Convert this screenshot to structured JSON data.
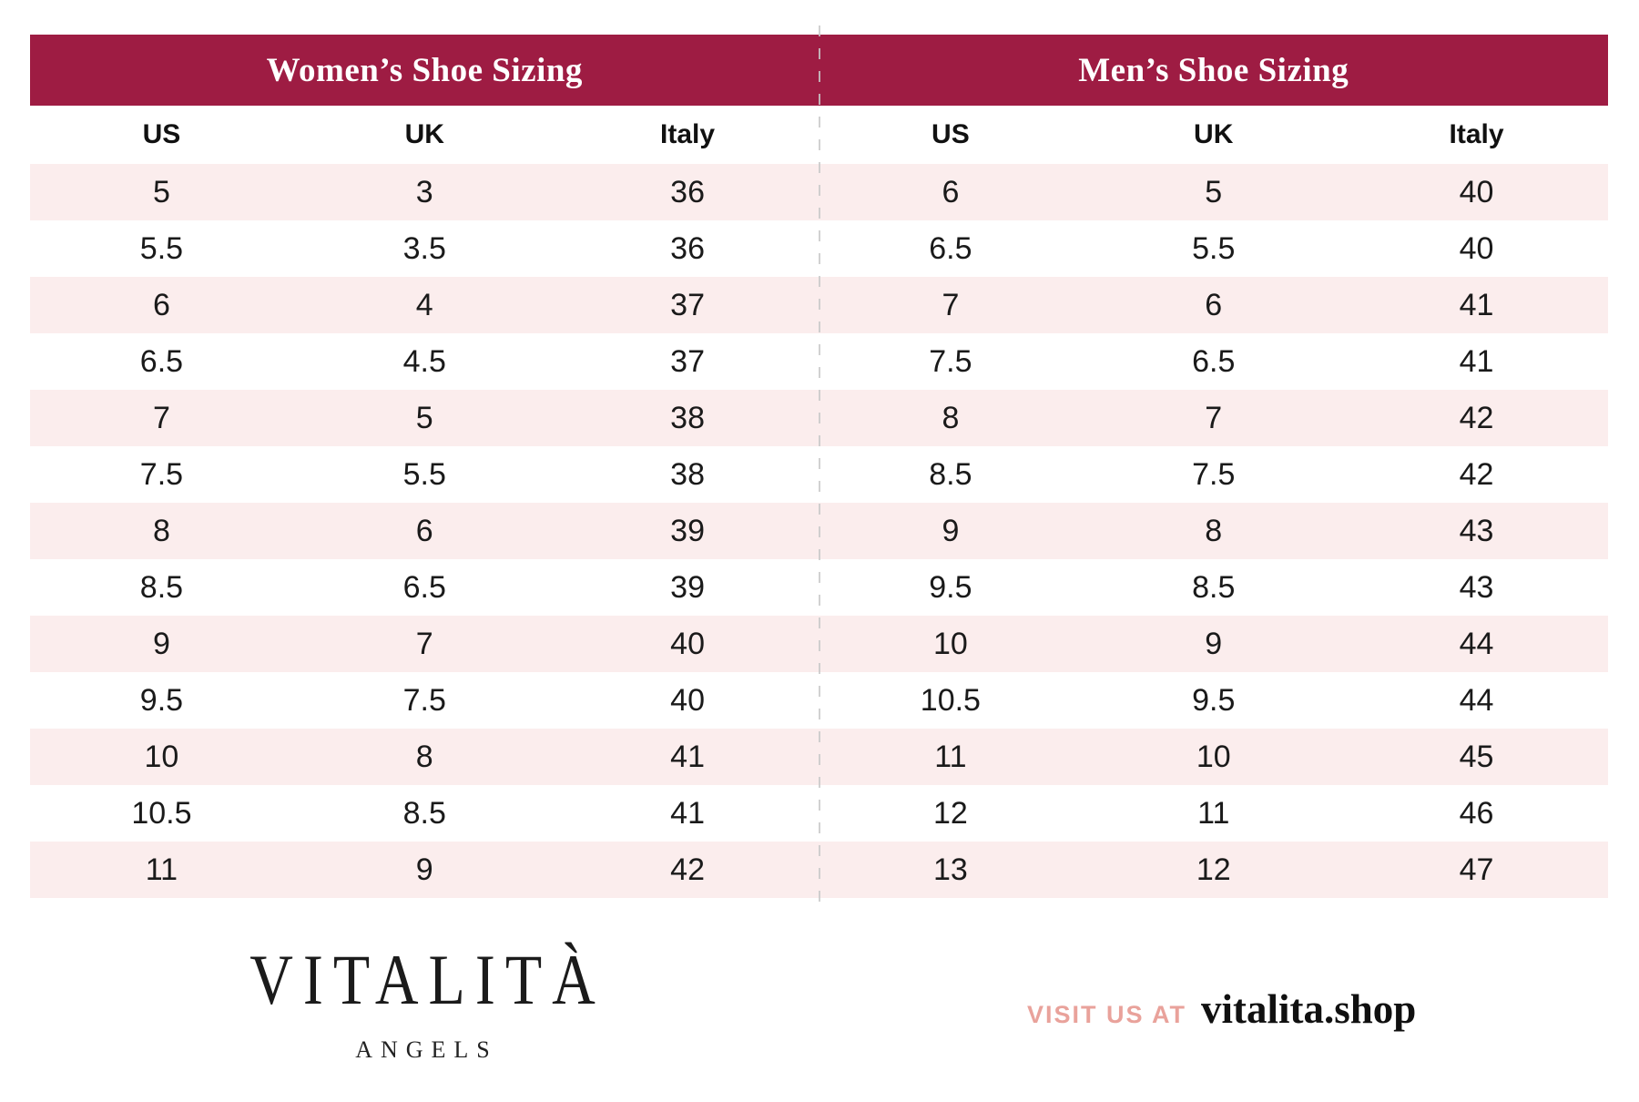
{
  "tables": {
    "women": {
      "title": "Women’s Shoe Sizing",
      "columns": [
        "US",
        "UK",
        "Italy"
      ],
      "rows": [
        [
          "5",
          "3",
          "36"
        ],
        [
          "5.5",
          "3.5",
          "36"
        ],
        [
          "6",
          "4",
          "37"
        ],
        [
          "6.5",
          "4.5",
          "37"
        ],
        [
          "7",
          "5",
          "38"
        ],
        [
          "7.5",
          "5.5",
          "38"
        ],
        [
          "8",
          "6",
          "39"
        ],
        [
          "8.5",
          "6.5",
          "39"
        ],
        [
          "9",
          "7",
          "40"
        ],
        [
          "9.5",
          "7.5",
          "40"
        ],
        [
          "10",
          "8",
          "41"
        ],
        [
          "10.5",
          "8.5",
          "41"
        ],
        [
          "11",
          "9",
          "42"
        ]
      ]
    },
    "men": {
      "title": "Men’s Shoe Sizing",
      "columns": [
        "US",
        "UK",
        "Italy"
      ],
      "rows": [
        [
          "6",
          "5",
          "40"
        ],
        [
          "6.5",
          "5.5",
          "40"
        ],
        [
          "7",
          "6",
          "41"
        ],
        [
          "7.5",
          "6.5",
          "41"
        ],
        [
          "8",
          "7",
          "42"
        ],
        [
          "8.5",
          "7.5",
          "42"
        ],
        [
          "9",
          "8",
          "43"
        ],
        [
          "9.5",
          "8.5",
          "43"
        ],
        [
          "10",
          "9",
          "44"
        ],
        [
          "10.5",
          "9.5",
          "44"
        ],
        [
          "11",
          "10",
          "45"
        ],
        [
          "12",
          "11",
          "46"
        ],
        [
          "13",
          "12",
          "47"
        ]
      ]
    }
  },
  "footer": {
    "brand": "VITALITÀ",
    "brand_sub": "ANGELS",
    "visit_label": "VISIT US AT",
    "visit_url": "vitalita.shop"
  },
  "colors": {
    "header_band": "#9E1C43",
    "row_pink": "#FBEDED",
    "visit_label_salmon": "#E9A29B",
    "divider_gray": "#C9C9C9"
  }
}
